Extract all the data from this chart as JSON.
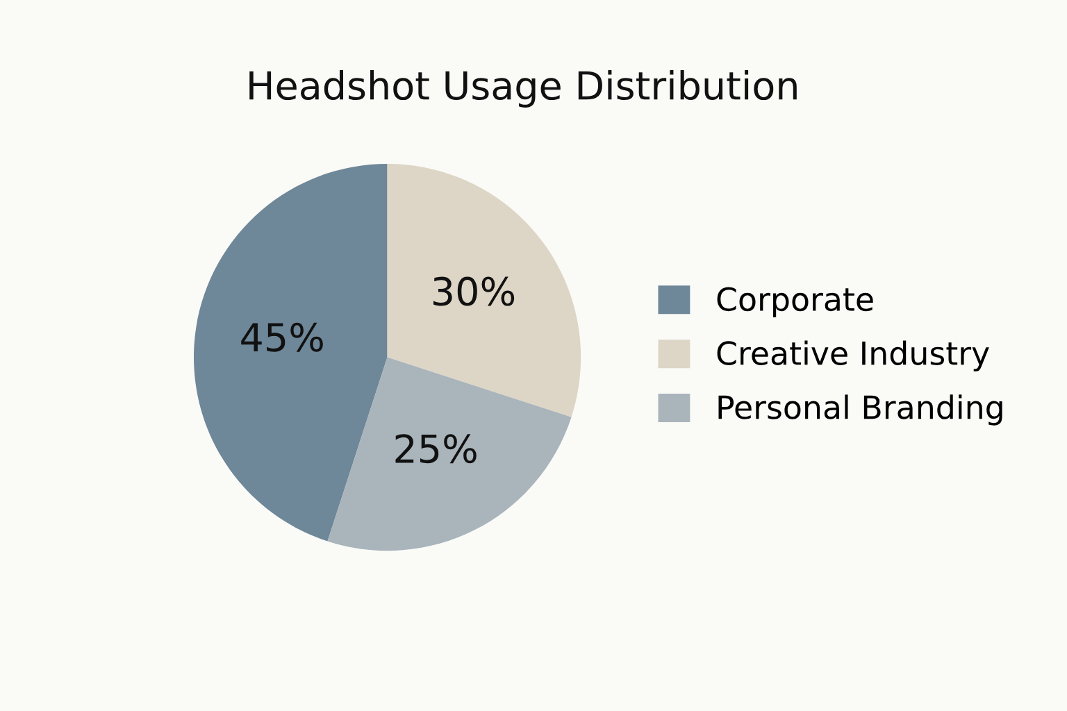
{
  "chart_data": {
    "type": "pie",
    "title": "Headshot Usage Distribution",
    "categories": [
      "Corporate",
      "Creative Industry",
      "Personal Branding"
    ],
    "values": [
      45,
      30,
      25
    ],
    "colors": [
      "#6e8799",
      "#ddd5c5",
      "#a9b4bb"
    ],
    "value_labels": [
      "45%",
      "30%",
      "25%"
    ],
    "legend": "right"
  }
}
